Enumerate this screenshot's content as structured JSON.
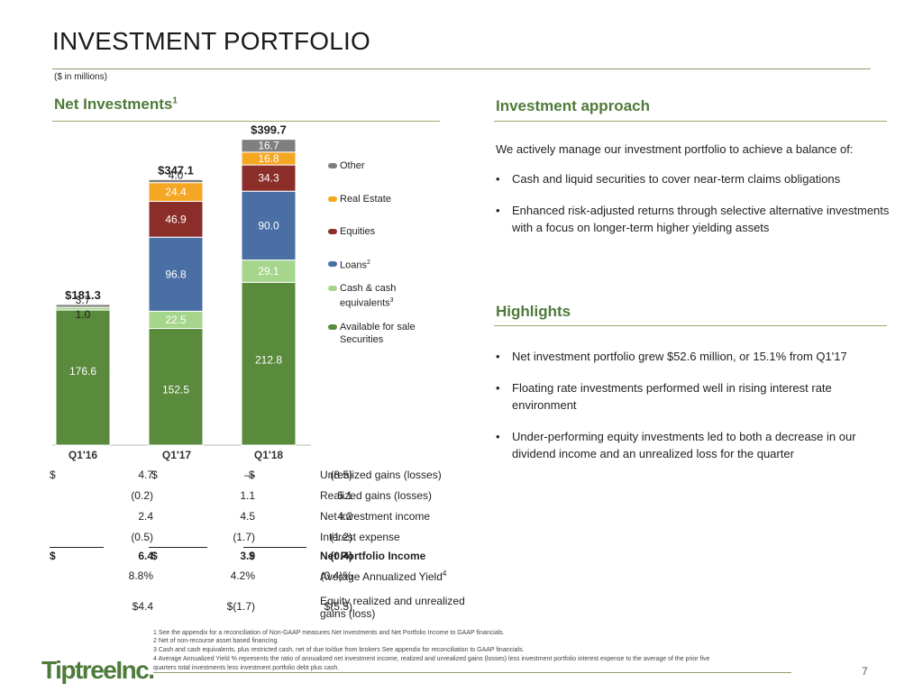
{
  "page": {
    "title": "INVESTMENT PORTFOLIO",
    "units": "($ in millions)",
    "page_number": "7",
    "logo_text": "TiptreeInc."
  },
  "left_section": {
    "heading": "Net Investments",
    "heading_sup": "1"
  },
  "right_section": {
    "heading": "Investment approach",
    "intro": "We actively manage our investment portfolio to achieve a balance of:",
    "bullets": [
      "Cash and liquid securities to cover near-term claims obligations",
      "Enhanced risk-adjusted returns through selective alternative investments with a focus on longer-term higher yielding assets"
    ]
  },
  "highlights": {
    "heading": "Highlights",
    "bullets": [
      "Net investment portfolio grew $52.6 million, or 15.1% from Q1'17",
      "Floating rate investments performed well in rising interest rate environment",
      "Under-performing equity investments led to both a decrease in our dividend income and an unrealized loss for the quarter"
    ]
  },
  "chart_data": {
    "type": "bar",
    "stacked": true,
    "categories": [
      "Q1'16",
      "Q1'17",
      "Q1'18"
    ],
    "totals": [
      "$181.3",
      "$347.1",
      "$399.7"
    ],
    "total_values": [
      181.3,
      347.1,
      399.7
    ],
    "series": [
      {
        "name": "Available for sale Securities",
        "color": "#5a8a3c",
        "values": [
          176.6,
          152.5,
          212.8
        ],
        "labels": [
          "176.6",
          "152.5",
          "212.8"
        ]
      },
      {
        "name": "Cash & cash equivalents",
        "name_sup": "3",
        "color": "#a6d58c",
        "values": [
          1.0,
          22.5,
          29.1
        ],
        "labels": [
          "1.0",
          "22.5",
          "29.1"
        ]
      },
      {
        "name": "Loans",
        "name_sup": "2",
        "color": "#4a6fa5",
        "values": [
          0,
          96.8,
          90.0
        ],
        "labels": [
          "",
          "96.8",
          "90.0"
        ]
      },
      {
        "name": "Equities",
        "color": "#8b2e2a",
        "values": [
          0,
          46.9,
          34.3
        ],
        "labels": [
          "",
          "46.9",
          "34.3"
        ]
      },
      {
        "name": "Real Estate",
        "color": "#f5a623",
        "values": [
          0,
          24.4,
          16.8
        ],
        "labels": [
          "",
          "24.4",
          "16.8"
        ]
      },
      {
        "name": "Other",
        "color": "#7f7f7f",
        "values": [
          3.7,
          4.0,
          16.7
        ],
        "labels": [
          "3.7",
          "4.0",
          "16.7"
        ]
      }
    ],
    "legend_order": [
      "Other",
      "Real Estate",
      "Equities",
      "Loans",
      "Cash & cash equivalents",
      "Available for sale Securities"
    ]
  },
  "table": {
    "rows": [
      {
        "label": "Unrealized gains (losses)",
        "v": [
          "4.7",
          "—",
          "(8.5)"
        ],
        "dollar": true,
        "bold": false
      },
      {
        "label": "Realized gains (losses)",
        "v": [
          "(0.2)",
          "1.1",
          "5.1"
        ],
        "dollar": false,
        "bold": false
      },
      {
        "label": "Net investment income",
        "v": [
          "2.4",
          "4.5",
          "4.2"
        ],
        "dollar": false,
        "bold": false
      },
      {
        "label": "Interest expense",
        "v": [
          "(0.5)",
          "(1.7)",
          "(1.2)"
        ],
        "dollar": false,
        "bold": false
      },
      {
        "label": "Net Portfolio Income",
        "v": [
          "6.4",
          "3.9",
          "(0.4)"
        ],
        "dollar": true,
        "bold": true
      },
      {
        "label": "Average Annualized Yield",
        "label_sup": "4",
        "v": [
          "8.8%",
          "4.2%",
          "(0.4)%"
        ],
        "dollar": false,
        "bold": false
      },
      {
        "label": "Equity realized and unrealized gains (loss)",
        "v": [
          "$4.4",
          "$(1.7)",
          "$(5.5)"
        ],
        "dollar": false,
        "bold": false
      }
    ],
    "dollar_sign": "$"
  },
  "footnotes": [
    "1 See the appendix for a reconciliation of Non-GAAP measures Net Investments and Net Portfolio Income to GAAP financials.",
    "2 Net of non-recourse asset based financing.",
    "3 Cash and cash equivalents, plus restricted cash, net of due to/due from brokers See appendix for reconciliation to GAAP financials.",
    "4 Average Annualized Yield % represents the ratio of annualized net investment income, realized and unrealized gains (losses) less investment portfolio interest expense to the average of the prior five",
    "quarters total investments less investment portfolio debt plus cash."
  ]
}
